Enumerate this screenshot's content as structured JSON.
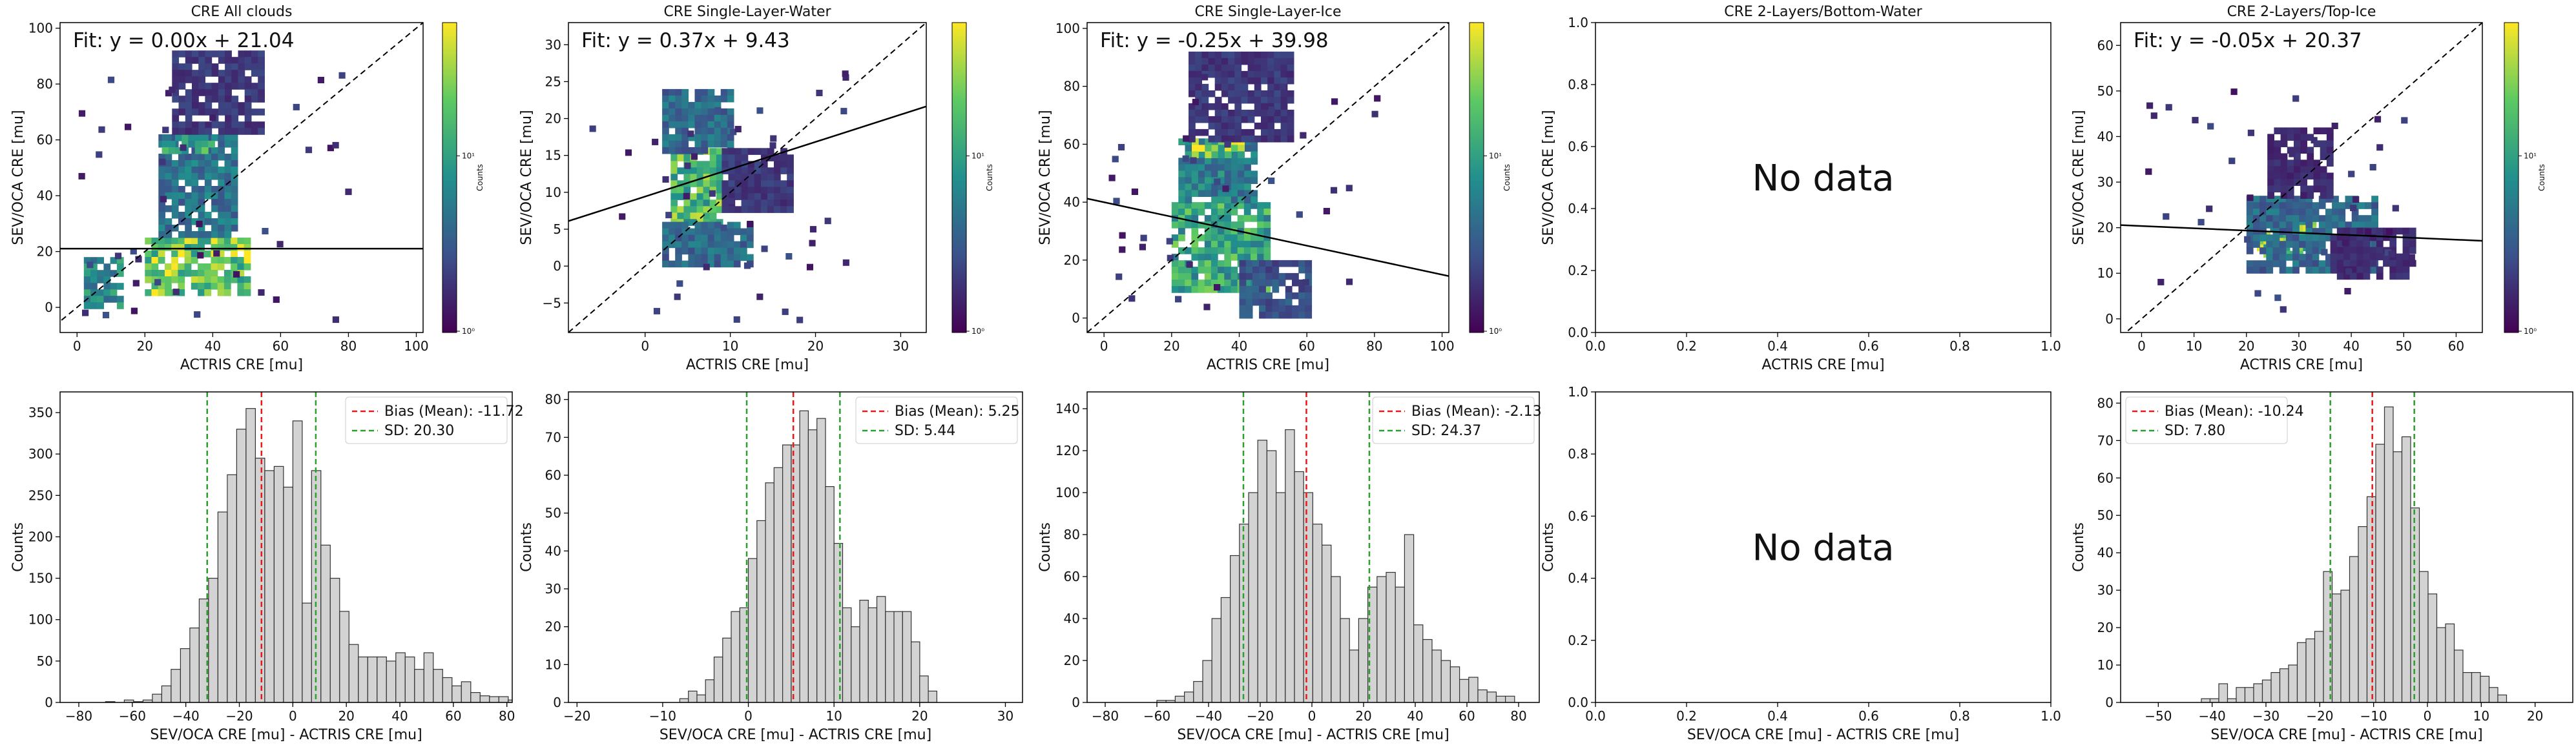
{
  "figure": {
    "scatter_xlabel": "ACTRIS CRE [mu]",
    "scatter_ylabel": "SEV/OCA CRE [mu]",
    "hist_xlabel": "SEV/OCA CRE [mu] - ACTRIS CRE [mu]",
    "hist_ylabel": "Counts",
    "colorbar_label": "Counts",
    "no_data_text": "No data",
    "colors": {
      "bias": "#e41a1c",
      "sd": "#2ca02c",
      "bar_fill": "#d3d3d3",
      "bar_edge": "#333333"
    }
  },
  "chart_data": [
    {
      "type": "heatmap",
      "title": "CRE All clouds",
      "xlabel": "ACTRIS CRE [mu]",
      "ylabel": "SEV/OCA CRE [mu]",
      "xlim": [
        -5,
        102
      ],
      "ylim": [
        -9,
        102
      ],
      "xticks": [
        0,
        20,
        40,
        60,
        80,
        100
      ],
      "yticks": [
        0,
        20,
        40,
        60,
        80,
        100
      ],
      "fit_label": "Fit: y = 0.00x + 21.04",
      "fit": {
        "slope": 0.0,
        "intercept": 21.04
      },
      "colorbar": {
        "label": "Counts",
        "scale": "log",
        "ticks": [
          "10⁰",
          "10¹"
        ]
      },
      "density_regions": [
        {
          "x": [
            20,
            50
          ],
          "y": [
            5,
            25
          ],
          "level": 0.9
        },
        {
          "x": [
            2,
            12
          ],
          "y": [
            0,
            18
          ],
          "level": 0.55
        },
        {
          "x": [
            24,
            46
          ],
          "y": [
            26,
            62
          ],
          "level": 0.45
        },
        {
          "x": [
            25,
            40
          ],
          "y": [
            56,
            62
          ],
          "level": 0.7
        },
        {
          "x": [
            28,
            55
          ],
          "y": [
            62,
            92
          ],
          "level": 0.2
        }
      ]
    },
    {
      "type": "heatmap",
      "title": "CRE Single-Layer-Water",
      "xlabel": "ACTRIS CRE [mu]",
      "ylabel": "SEV/OCA CRE [mu]",
      "xlim": [
        -9,
        33
      ],
      "ylim": [
        -9,
        33
      ],
      "xticks": [
        0,
        10,
        20,
        30
      ],
      "yticks": [
        -5,
        0,
        5,
        10,
        15,
        20,
        25,
        30
      ],
      "fit_label": "Fit: y = 0.37x + 9.43",
      "fit": {
        "slope": 0.37,
        "intercept": 9.43
      },
      "colorbar": {
        "label": "Counts",
        "scale": "log",
        "ticks": [
          "10⁰",
          "10¹"
        ]
      },
      "density_regions": [
        {
          "x": [
            3,
            9
          ],
          "y": [
            6,
            16
          ],
          "level": 0.8
        },
        {
          "x": [
            2,
            10
          ],
          "y": [
            16,
            24
          ],
          "level": 0.4
        },
        {
          "x": [
            2,
            12
          ],
          "y": [
            0,
            6
          ],
          "level": 0.4
        },
        {
          "x": [
            9,
            17
          ],
          "y": [
            8,
            16
          ],
          "level": 0.2
        }
      ]
    },
    {
      "type": "heatmap",
      "title": "CRE Single-Layer-Ice",
      "xlabel": "ACTRIS CRE [mu]",
      "ylabel": "SEV/OCA CRE [mu]",
      "xlim": [
        -5,
        102
      ],
      "ylim": [
        -5,
        102
      ],
      "xticks": [
        0,
        20,
        40,
        60,
        80,
        100
      ],
      "yticks": [
        0,
        20,
        40,
        60,
        80,
        100
      ],
      "fit_label": "Fit: y = -0.25x + 39.98",
      "fit": {
        "slope": -0.25,
        "intercept": 39.98
      },
      "colorbar": {
        "label": "Counts",
        "scale": "log",
        "ticks": [
          "10⁰",
          "10¹"
        ]
      },
      "density_regions": [
        {
          "x": [
            20,
            48
          ],
          "y": [
            10,
            40
          ],
          "level": 0.7
        },
        {
          "x": [
            22,
            45
          ],
          "y": [
            40,
            62
          ],
          "level": 0.5
        },
        {
          "x": [
            24,
            40
          ],
          "y": [
            57,
            62
          ],
          "level": 0.9
        },
        {
          "x": [
            25,
            55
          ],
          "y": [
            62,
            92
          ],
          "level": 0.2
        },
        {
          "x": [
            40,
            60
          ],
          "y": [
            2,
            20
          ],
          "level": 0.3
        }
      ]
    },
    {
      "type": "heatmap",
      "title": "CRE 2-Layers/Bottom-Water",
      "xlabel": "ACTRIS CRE [mu]",
      "ylabel": "SEV/OCA CRE [mu]",
      "xlim": [
        0,
        1
      ],
      "ylim": [
        0,
        1
      ],
      "xticks": [
        0.0,
        0.2,
        0.4,
        0.6,
        0.8,
        1.0
      ],
      "yticks": [
        0.0,
        0.2,
        0.4,
        0.6,
        0.8,
        1.0
      ],
      "empty": true,
      "note": "No data"
    },
    {
      "type": "heatmap",
      "title": "CRE 2-Layers/Top-Ice",
      "xlabel": "ACTRIS CRE [mu]",
      "ylabel": "SEV/OCA CRE [mu]",
      "xlim": [
        -4,
        65
      ],
      "ylim": [
        -3,
        65
      ],
      "xticks": [
        0,
        10,
        20,
        30,
        40,
        50,
        60
      ],
      "yticks": [
        0,
        10,
        20,
        30,
        40,
        50,
        60
      ],
      "fit_label": "Fit: y = -0.05x + 20.37",
      "fit": {
        "slope": -0.05,
        "intercept": 20.37
      },
      "colorbar": {
        "label": "Counts",
        "scale": "log",
        "ticks": [
          "10⁰",
          "10¹"
        ]
      },
      "density_regions": [
        {
          "x": [
            22,
            33
          ],
          "y": [
            14,
            22
          ],
          "level": 0.85
        },
        {
          "x": [
            20,
            44
          ],
          "y": [
            10,
            27
          ],
          "level": 0.4
        },
        {
          "x": [
            24,
            36
          ],
          "y": [
            27,
            42
          ],
          "level": 0.15
        },
        {
          "x": [
            36,
            52
          ],
          "y": [
            10,
            20
          ],
          "level": 0.15
        }
      ]
    },
    {
      "type": "bar",
      "chart_kind": "histogram",
      "xlabel": "SEV/OCA CRE [mu] - ACTRIS CRE [mu]",
      "ylabel": "Counts",
      "xlim": [
        -87,
        82
      ],
      "ylim": [
        0,
        375
      ],
      "xticks": [
        -80,
        -60,
        -40,
        -20,
        0,
        20,
        40,
        60,
        80
      ],
      "yticks": [
        0,
        50,
        100,
        150,
        200,
        250,
        300,
        350
      ],
      "bin_start": -70,
      "bin_width": 3.5,
      "values": [
        1,
        0,
        3,
        1,
        3,
        10,
        20,
        40,
        65,
        90,
        125,
        150,
        230,
        275,
        330,
        355,
        295,
        280,
        285,
        260,
        340,
        120,
        280,
        190,
        150,
        110,
        70,
        55,
        55,
        55,
        50,
        60,
        55,
        40,
        60,
        40,
        30,
        20,
        25,
        12,
        8,
        7,
        7,
        3,
        2
      ],
      "bias": -11.72,
      "sd": 20.3,
      "legend": [
        "Bias (Mean): -11.72",
        "SD: 20.30"
      ],
      "legend_loc": "upper right"
    },
    {
      "type": "bar",
      "chart_kind": "histogram",
      "xlabel": "SEV/OCA CRE [mu] - ACTRIS CRE [mu]",
      "ylabel": "Counts",
      "xlim": [
        -21,
        32
      ],
      "ylim": [
        0,
        82
      ],
      "xticks": [
        -20,
        -10,
        0,
        10,
        20,
        30
      ],
      "yticks": [
        0,
        10,
        20,
        30,
        40,
        50,
        60,
        70,
        80
      ],
      "bin_start": -8,
      "bin_width": 1,
      "values": [
        1,
        3,
        2,
        6,
        12,
        17,
        24,
        25,
        38,
        48,
        58,
        62,
        68,
        68,
        77,
        72,
        75,
        57,
        42,
        25,
        20,
        27,
        25,
        28,
        24,
        24,
        24,
        16,
        7,
        3
      ],
      "bias": 5.25,
      "sd": 5.44,
      "legend": [
        "Bias (Mean): 5.25",
        "SD: 5.44"
      ],
      "legend_loc": "upper right"
    },
    {
      "type": "bar",
      "chart_kind": "histogram",
      "xlabel": "SEV/OCA CRE [mu] - ACTRIS CRE [mu]",
      "ylabel": "Counts",
      "xlim": [
        -87,
        88
      ],
      "ylim": [
        0,
        148
      ],
      "xticks": [
        -80,
        -60,
        -40,
        -20,
        0,
        20,
        40,
        60,
        80
      ],
      "yticks": [
        0,
        20,
        40,
        60,
        80,
        100,
        120,
        140
      ],
      "bin_start": -60,
      "bin_width": 3.55,
      "values": [
        1,
        1,
        3,
        5,
        10,
        20,
        40,
        50,
        70,
        85,
        100,
        125,
        120,
        100,
        130,
        110,
        100,
        85,
        75,
        60,
        40,
        25,
        40,
        55,
        60,
        62,
        55,
        80,
        37,
        30,
        25,
        20,
        17,
        11,
        12,
        6,
        5,
        3,
        3
      ],
      "bias": -2.13,
      "sd": 24.37,
      "legend": [
        "Bias (Mean): -2.13",
        "SD: 24.37"
      ],
      "legend_loc": "upper right"
    },
    {
      "type": "bar",
      "chart_kind": "histogram",
      "xlabel": "SEV/OCA CRE [mu] - ACTRIS CRE [mu]",
      "ylabel": "Counts",
      "xlim": [
        0,
        1
      ],
      "ylim": [
        0,
        1
      ],
      "xticks": [
        0.0,
        0.2,
        0.4,
        0.6,
        0.8,
        1.0
      ],
      "yticks": [
        0.0,
        0.2,
        0.4,
        0.6,
        0.8,
        1.0
      ],
      "empty": true,
      "note": "No data"
    },
    {
      "type": "bar",
      "chart_kind": "histogram",
      "xlabel": "SEV/OCA CRE [mu] - ACTRIS CRE [mu]",
      "ylabel": "Counts",
      "xlim": [
        -57,
        27
      ],
      "ylim": [
        0,
        83
      ],
      "xticks": [
        -50,
        -40,
        -30,
        -20,
        -10,
        0,
        10,
        20
      ],
      "yticks": [
        0,
        10,
        20,
        30,
        40,
        50,
        60,
        70,
        80
      ],
      "bin_start": -42,
      "bin_width": 1.62,
      "values": [
        1,
        1,
        5,
        1,
        4,
        4,
        5,
        6,
        8,
        9,
        10,
        16,
        17,
        19,
        35,
        29,
        30,
        39,
        47,
        55,
        69,
        79,
        67,
        71,
        52,
        35,
        29,
        20,
        21,
        14,
        8,
        8,
        7,
        4,
        2
      ],
      "bias": -10.24,
      "sd": 7.8,
      "legend": [
        "Bias (Mean): -10.24",
        "SD: 7.80"
      ],
      "legend_loc": "upper left"
    }
  ]
}
